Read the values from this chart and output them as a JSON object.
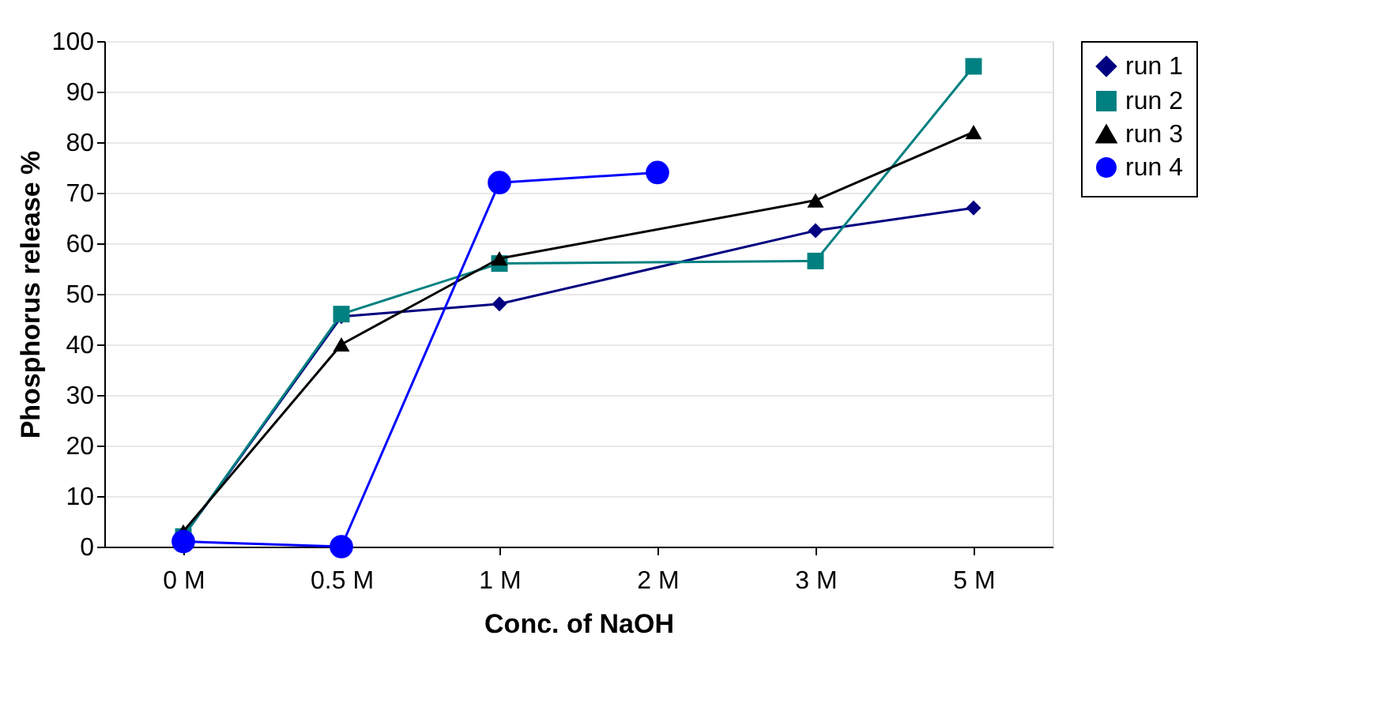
{
  "chart_data": {
    "type": "line",
    "xlabel": "Conc. of NaOH",
    "ylabel": "Phosphorus release %",
    "categories": [
      "0 M",
      "0.5 M",
      "1 M",
      "2 M",
      "3 M",
      "5 M"
    ],
    "series": [
      {
        "name": "run 1",
        "color": "#000080",
        "marker": "diamond",
        "values": [
          2,
          45.5,
          48,
          null,
          62.5,
          67
        ]
      },
      {
        "name": "run 2",
        "color": "#008080",
        "marker": "square",
        "values": [
          2,
          46,
          56,
          null,
          56.5,
          95
        ]
      },
      {
        "name": "run 3",
        "color": "#000000",
        "marker": "triangle",
        "values": [
          3,
          40,
          57,
          null,
          68.5,
          82
        ]
      },
      {
        "name": "run 4",
        "color": "#0000ff",
        "marker": "circle",
        "values": [
          1,
          0,
          72,
          74,
          null,
          null
        ]
      }
    ],
    "ylim": [
      0,
      100
    ],
    "yticks": [
      0,
      10,
      20,
      30,
      40,
      50,
      60,
      70,
      80,
      90,
      100
    ],
    "grid": "y",
    "legend": "right",
    "line_style": "solid"
  }
}
